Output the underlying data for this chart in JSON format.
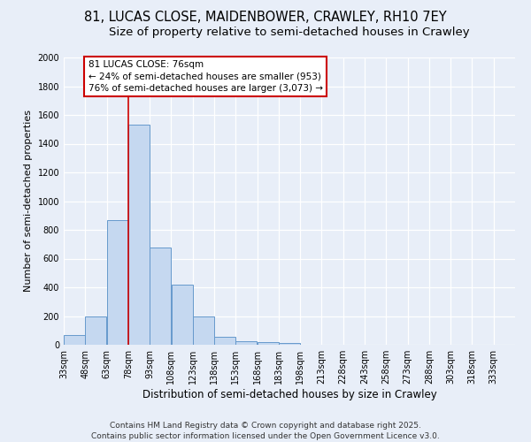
{
  "title": "81, LUCAS CLOSE, MAIDENBOWER, CRAWLEY, RH10 7EY",
  "subtitle": "Size of property relative to semi-detached houses in Crawley",
  "xlabel": "Distribution of semi-detached houses by size in Crawley",
  "ylabel": "Number of semi-detached properties",
  "categories": [
    "33sqm",
    "48sqm",
    "63sqm",
    "78sqm",
    "93sqm",
    "108sqm",
    "123sqm",
    "138sqm",
    "153sqm",
    "168sqm",
    "183sqm",
    "198sqm",
    "213sqm",
    "228sqm",
    "243sqm",
    "258sqm",
    "273sqm",
    "288sqm",
    "303sqm",
    "318sqm",
    "333sqm"
  ],
  "values": [
    65,
    200,
    870,
    1530,
    680,
    420,
    195,
    55,
    25,
    18,
    12,
    0,
    0,
    0,
    0,
    0,
    0,
    0,
    0,
    0,
    0
  ],
  "bar_color": "#c5d8f0",
  "bar_edge_color": "#6699cc",
  "property_line_x": 78,
  "property_line_label": "81 LUCAS CLOSE: 76sqm",
  "annotation_smaller": "← 24% of semi-detached houses are smaller (953)",
  "annotation_larger": "76% of semi-detached houses are larger (3,073) →",
  "annotation_box_color": "#ffffff",
  "annotation_box_edge": "#cc0000",
  "vline_color": "#cc0000",
  "ylim": [
    0,
    2000
  ],
  "yticks": [
    0,
    200,
    400,
    600,
    800,
    1000,
    1200,
    1400,
    1600,
    1800,
    2000
  ],
  "bg_color": "#e8eef8",
  "fig_bg_color": "#e8eef8",
  "footer": "Contains HM Land Registry data © Crown copyright and database right 2025.\nContains public sector information licensed under the Open Government Licence v3.0.",
  "title_fontsize": 10.5,
  "subtitle_fontsize": 9.5,
  "xlabel_fontsize": 8.5,
  "ylabel_fontsize": 8,
  "tick_fontsize": 7,
  "footer_fontsize": 6.5,
  "ann_fontsize": 7.5
}
